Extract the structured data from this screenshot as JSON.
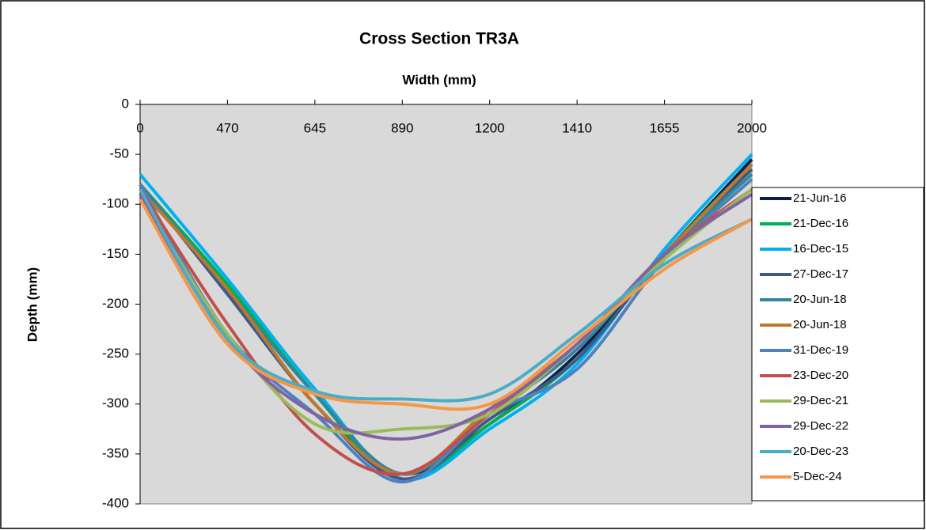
{
  "chart_data": {
    "type": "line",
    "title": "Cross Section TR3A",
    "x_label": "Width (mm)",
    "y_label": "Depth (mm)",
    "categories": [
      "0",
      "470",
      "645",
      "890",
      "1200",
      "1410",
      "1655",
      "2000"
    ],
    "ylim": [
      -400,
      0
    ],
    "yticks": [
      -400,
      -350,
      -300,
      -250,
      -200,
      -150,
      -100,
      -50,
      0
    ],
    "smooth": true,
    "legend": "right",
    "background": "#d9d9d9",
    "series": [
      {
        "name": "21-Jun-16",
        "color": "#0d1f4f",
        "values": [
          -80,
          -185,
          -300,
          -370,
          -320,
          -250,
          -150,
          -55
        ]
      },
      {
        "name": "21-Dec-16",
        "color": "#00b050",
        "values": [
          -80,
          -180,
          -290,
          -375,
          -320,
          -255,
          -150,
          -60
        ]
      },
      {
        "name": "16-Dec-15",
        "color": "#00b0f0",
        "values": [
          -70,
          -175,
          -285,
          -375,
          -325,
          -260,
          -145,
          -50
        ]
      },
      {
        "name": "27-Dec-17",
        "color": "#3c5a8a",
        "values": [
          -80,
          -190,
          -300,
          -375,
          -315,
          -255,
          -150,
          -65
        ]
      },
      {
        "name": "20-Jun-18",
        "color": "#31859c",
        "values": [
          -80,
          -185,
          -290,
          -370,
          -310,
          -245,
          -150,
          -70
        ]
      },
      {
        "name": "20-Jun-18",
        "color": "#c0762c",
        "values": [
          -85,
          -185,
          -300,
          -370,
          -305,
          -240,
          -150,
          -60
        ]
      },
      {
        "name": "31-Dec-19",
        "color": "#4f81bd",
        "values": [
          -80,
          -230,
          -310,
          -378,
          -310,
          -265,
          -155,
          -75
        ]
      },
      {
        "name": "23-Dec-20",
        "color": "#c0504d",
        "values": [
          -85,
          -220,
          -330,
          -370,
          -310,
          -240,
          -150,
          -85
        ]
      },
      {
        "name": "29-Dec-21",
        "color": "#9bbb59",
        "values": [
          -90,
          -230,
          -320,
          -325,
          -310,
          -240,
          -155,
          -85
        ]
      },
      {
        "name": "29-Dec-22",
        "color": "#8064a2",
        "values": [
          -90,
          -235,
          -310,
          -335,
          -305,
          -240,
          -150,
          -90
        ]
      },
      {
        "name": "20-Dec-23",
        "color": "#4bacc6",
        "values": [
          -85,
          -235,
          -287,
          -295,
          -290,
          -230,
          -160,
          -115
        ]
      },
      {
        "name": "5-Dec-24",
        "color": "#f79646",
        "values": [
          -95,
          -240,
          -290,
          -300,
          -300,
          -235,
          -165,
          -115
        ]
      }
    ]
  }
}
